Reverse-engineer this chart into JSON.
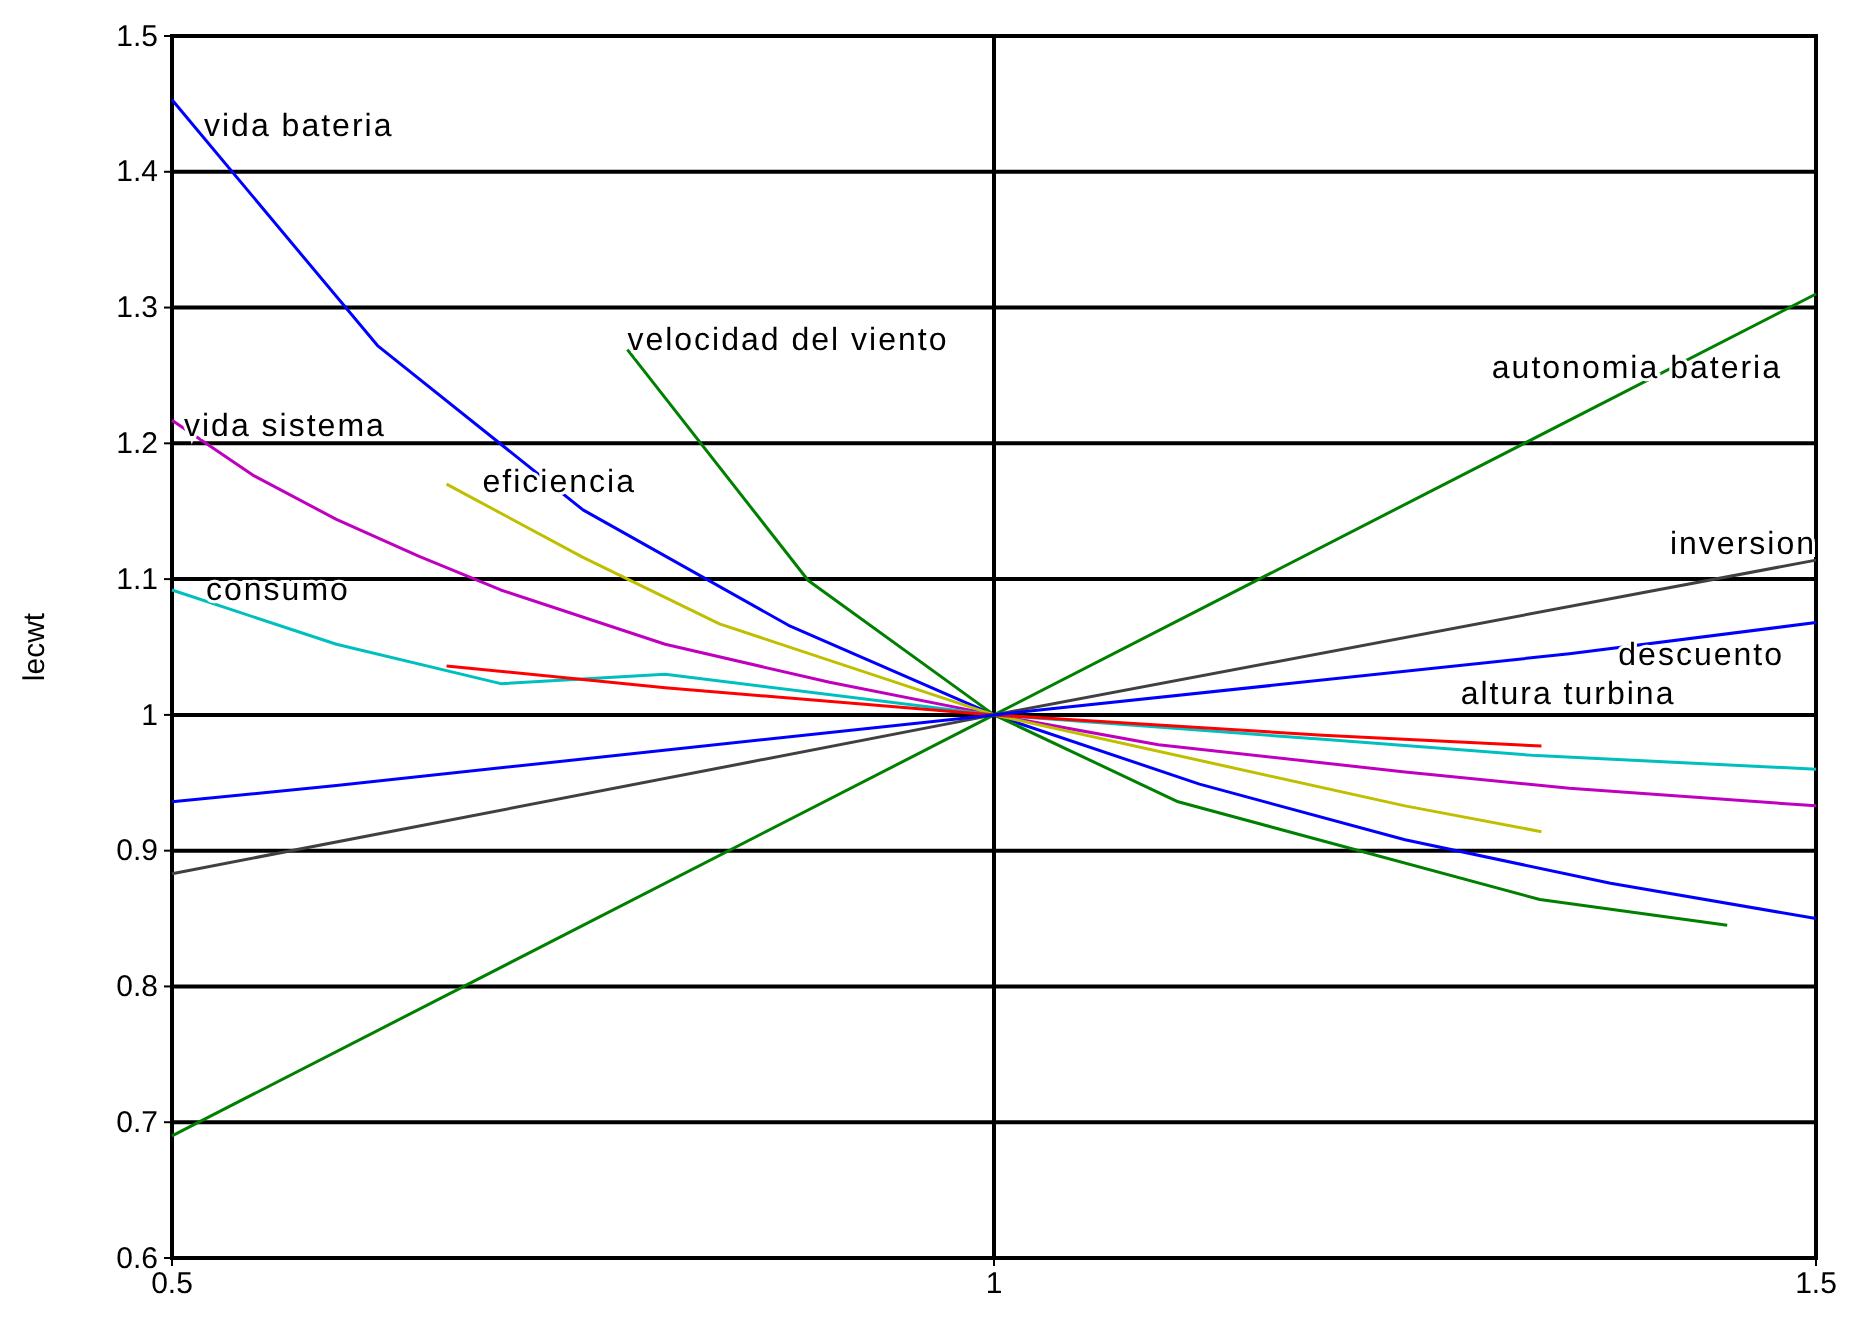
{
  "chart_data": {
    "type": "line",
    "ylabel": "lecwt",
    "xlim": [
      0.5,
      1.5
    ],
    "xticks": [
      0.5,
      1,
      1.5
    ],
    "ylim": [
      0.6,
      1.5
    ],
    "yticks": [
      0.6,
      0.7,
      0.8,
      0.9,
      1,
      1.1,
      1.2,
      1.3,
      1.4,
      1.5
    ],
    "grid": true,
    "marker": "none",
    "line_style": "solid",
    "series": [
      {
        "name": "vida bateria",
        "color": "#0000ff",
        "x": [
          0.5,
          0.625,
          0.75,
          0.875,
          1,
          1.125,
          1.25,
          1.375,
          1.5
        ],
        "values": [
          1.453,
          1.272,
          1.151,
          1.066,
          1,
          0.949,
          0.908,
          0.876,
          0.85
        ]
      },
      {
        "name": "velocidad del viento",
        "color": "#008000",
        "x": [
          0.777,
          0.887,
          1,
          1.112,
          1.332,
          1.446
        ],
        "values": [
          1.269,
          1.099,
          1,
          0.936,
          0.864,
          0.845
        ]
      },
      {
        "name": "vida sistema",
        "color": "#bf00bf",
        "x": [
          0.5,
          0.55,
          0.6,
          0.65,
          0.7,
          0.8,
          0.9,
          1,
          1.1,
          1.25,
          1.35,
          1.5
        ],
        "values": [
          1.217,
          1.176,
          1.144,
          1.117,
          1.092,
          1.052,
          1.024,
          1,
          0.978,
          0.958,
          0.946,
          0.933
        ]
      },
      {
        "name": "eficiencia",
        "color": "#bfbf00",
        "x": [
          0.667,
          0.75,
          0.833,
          1,
          1.25,
          1.333
        ],
        "values": [
          1.17,
          1.116,
          1.067,
          1,
          0.933,
          0.914
        ]
      },
      {
        "name": "consumo",
        "color": "#00bfbf",
        "x": [
          0.5,
          0.6,
          0.7,
          0.8,
          1,
          1.2,
          1.33,
          1.5
        ],
        "values": [
          1.092,
          1.052,
          1.023,
          1.03,
          1,
          0.982,
          0.97,
          0.96
        ]
      },
      {
        "name": "altura turbina",
        "color": "#ff0000",
        "x": [
          0.667,
          0.8,
          1,
          1.2,
          1.333
        ],
        "values": [
          1.036,
          1.02,
          1,
          0.985,
          0.977
        ]
      },
      {
        "name": "autonomia bateria",
        "color": "#008000",
        "x": [
          0.5,
          1,
          1.5
        ],
        "values": [
          0.69,
          1,
          1.31
        ]
      },
      {
        "name": "inversion",
        "color": "#404040",
        "x": [
          0.5,
          1,
          1.5
        ],
        "values": [
          0.883,
          1,
          1.114
        ]
      },
      {
        "name": "descuento",
        "color": "#0000ff",
        "x": [
          0.5,
          0.6,
          1,
          1.35,
          1.5
        ],
        "values": [
          0.936,
          0.948,
          1,
          1.045,
          1.068
        ]
      }
    ]
  }
}
